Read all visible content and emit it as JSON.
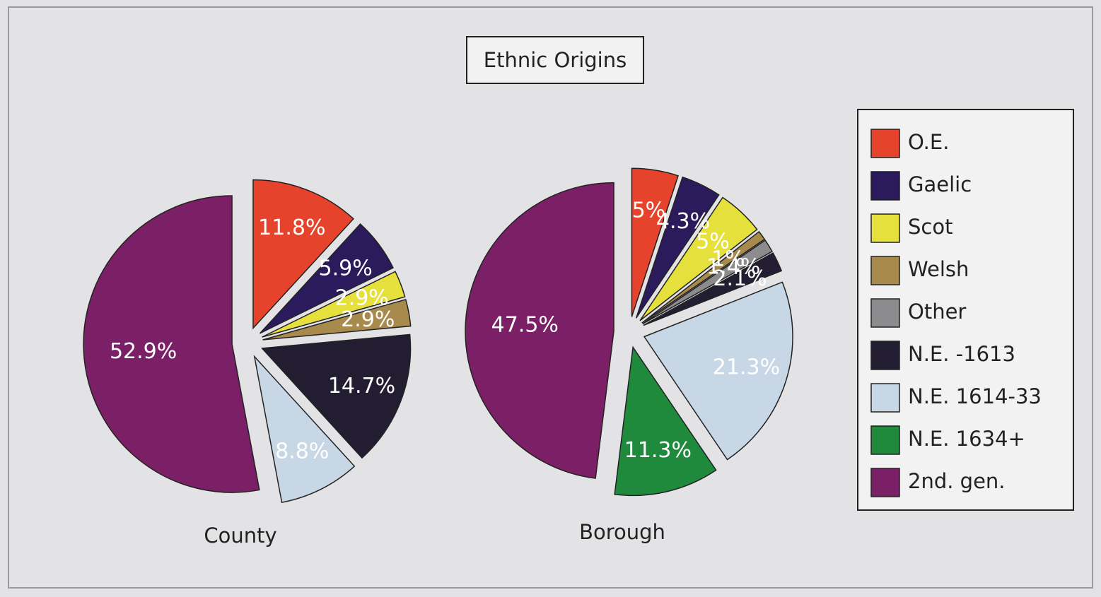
{
  "chart_data": {
    "type": "pie",
    "title": "Ethnic Origins",
    "categories": [
      "O.E.",
      "Gaelic",
      "Scot",
      "Welsh",
      "Other",
      "N.E. -1613",
      "N.E. 1614-33",
      "N.E. 1634+",
      "2nd. gen."
    ],
    "colors": [
      "#e5432c",
      "#2b1b5c",
      "#e6e03c",
      "#a88a4c",
      "#8c8c8e",
      "#231d31",
      "#c7d7e5",
      "#1f8a3c",
      "#7b1f66"
    ],
    "series": [
      {
        "name": "County",
        "values": [
          11.8,
          5.9,
          2.9,
          2.9,
          null,
          14.7,
          8.8,
          null,
          52.9
        ],
        "value_labels": [
          "11.8%",
          "5.9%",
          "2.9%",
          "2.9%",
          null,
          "14.7%",
          "8.8%",
          null,
          "52.9%"
        ]
      },
      {
        "name": "Borough",
        "values": [
          5,
          4.3,
          5,
          1,
          1.4,
          2.1,
          21.3,
          11.3,
          47.5
        ],
        "value_labels": [
          "5%",
          "4.3%",
          "5%",
          "1%",
          "1.4%",
          "2.1%",
          "21.3%",
          "11.3%",
          "47.5%"
        ]
      }
    ],
    "legend": "right"
  }
}
